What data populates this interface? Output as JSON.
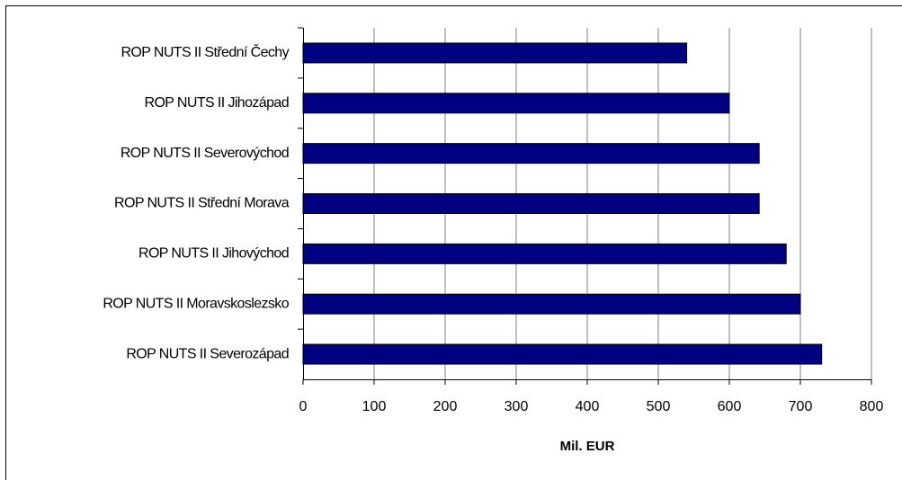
{
  "chart_data": {
    "type": "bar",
    "orientation": "horizontal",
    "x_label": "Mil. EUR",
    "categories": [
      "ROP NUTS II Střední Čechy",
      "ROP NUTS II Jihozápad",
      "ROP NUTS II Severovýchod",
      "ROP NUTS II Střední Morava",
      "ROP NUTS II Jihovýchod",
      "ROP NUTS II Moravskoslezsko",
      "ROP NUTS II Severozápad"
    ],
    "values": [
      540,
      600,
      642,
      642,
      680,
      700,
      730
    ],
    "color": "#000080",
    "xlim": [
      0,
      800
    ],
    "xticks": [
      0,
      100,
      200,
      300,
      400,
      500,
      600,
      700,
      800
    ],
    "grid": true
  }
}
